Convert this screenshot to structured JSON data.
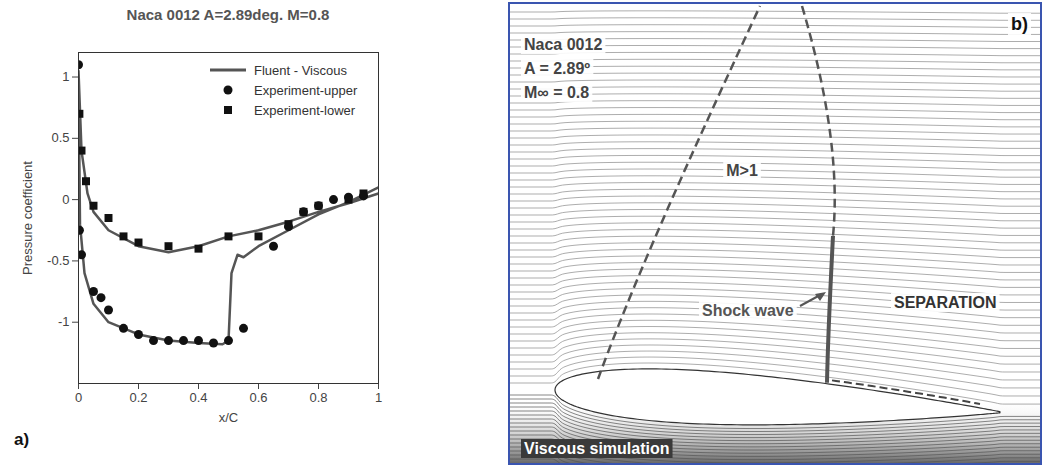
{
  "chart_data": {
    "type": "line",
    "title": "Naca 0012 A=2.89deg. M=0.8",
    "x_label": "x/C",
    "y_label": "Pressure coefficient",
    "xlim": [
      0,
      1
    ],
    "ylim": [
      -1.5,
      1.2
    ],
    "xticks": [
      0,
      0.2,
      0.4,
      0.6,
      0.8,
      1
    ],
    "yticks": [
      -1,
      -0.5,
      0,
      0.5,
      1
    ],
    "legend": "upper right",
    "annotations": [
      "a)"
    ],
    "series": [
      {
        "name": "Fluent - Viscous",
        "type": "line",
        "color": "#555555",
        "line_style": "solid",
        "x": [
          1.0,
          0.9,
          0.8,
          0.7,
          0.6,
          0.5,
          0.4,
          0.3,
          0.2,
          0.1,
          0.05,
          0.03,
          0.01,
          0.0,
          0.005,
          0.02,
          0.05,
          0.1,
          0.2,
          0.3,
          0.4,
          0.48,
          0.5,
          0.51,
          0.53,
          0.55,
          0.6,
          0.7,
          0.8,
          0.9,
          1.0
        ],
        "values": [
          0.05,
          -0.03,
          -0.1,
          -0.18,
          -0.25,
          -0.3,
          -0.38,
          -0.43,
          -0.38,
          -0.25,
          -0.1,
          0.05,
          0.4,
          1.05,
          -0.2,
          -0.6,
          -0.85,
          -1.0,
          -1.1,
          -1.15,
          -1.17,
          -1.18,
          -1.15,
          -0.6,
          -0.45,
          -0.47,
          -0.38,
          -0.25,
          -0.12,
          -0.02,
          0.1
        ]
      },
      {
        "name": "Experiment-upper",
        "type": "scatter",
        "marker": "circle",
        "color": "#111111",
        "x": [
          0.0,
          0.003,
          0.01,
          0.05,
          0.075,
          0.1,
          0.15,
          0.2,
          0.25,
          0.3,
          0.35,
          0.4,
          0.45,
          0.5,
          0.55,
          0.65,
          0.7,
          0.75,
          0.8,
          0.85,
          0.9,
          0.95
        ],
        "values": [
          1.1,
          -0.25,
          -0.45,
          -0.75,
          -0.8,
          -0.9,
          -1.05,
          -1.1,
          -1.15,
          -1.15,
          -1.15,
          -1.15,
          -1.17,
          -1.15,
          -1.05,
          -0.38,
          -0.22,
          -0.1,
          -0.05,
          0.0,
          0.02,
          0.03
        ]
      },
      {
        "name": "Experiment-lower",
        "type": "scatter",
        "marker": "square",
        "color": "#111111",
        "x": [
          0.003,
          0.01,
          0.025,
          0.05,
          0.1,
          0.15,
          0.2,
          0.3,
          0.4,
          0.5,
          0.6,
          0.7,
          0.75,
          0.8,
          0.9,
          0.95
        ],
        "values": [
          0.7,
          0.4,
          0.15,
          -0.05,
          -0.15,
          -0.3,
          -0.35,
          -0.38,
          -0.4,
          -0.3,
          -0.3,
          -0.2,
          -0.1,
          -0.05,
          0.0,
          0.05
        ]
      }
    ]
  },
  "diagram": {
    "panel_label": "b)",
    "title_lines": [
      "Naca 0012",
      "A = 2.89º",
      "M∞ = 0.8"
    ],
    "region_label": "M>1",
    "shock_label": "Shock wave",
    "separation_label": "SEPARATION",
    "caption": "Viscous simulation"
  }
}
